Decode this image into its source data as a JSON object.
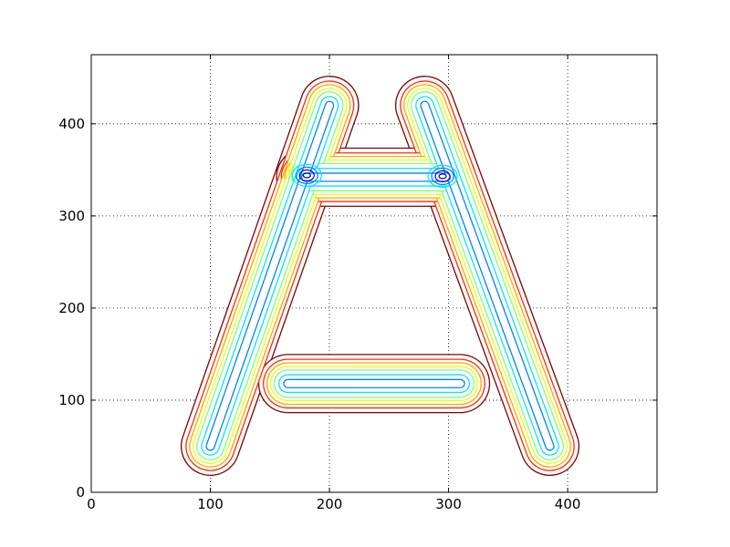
{
  "chart_data": {
    "type": "contour",
    "title": "",
    "xlabel": "",
    "ylabel": "",
    "xlim": [
      0,
      475
    ],
    "ylim": [
      0,
      475
    ],
    "x_ticks": [
      0,
      100,
      200,
      300,
      400
    ],
    "y_ticks": [
      0,
      100,
      200,
      300,
      400
    ],
    "x_tick_labels": [
      "0",
      "100",
      "200",
      "300",
      "400"
    ],
    "y_tick_labels": [
      "0",
      "100",
      "200",
      "300",
      "400"
    ],
    "grid": "dotted",
    "colormap": "jet",
    "level_colors": [
      "#00007f",
      "#0000ff",
      "#0080ff",
      "#00e5ff",
      "#7dff7a",
      "#e5ff12",
      "#ffa500",
      "#ff2a00",
      "#7f0000"
    ],
    "strokes": [
      {
        "name": "left-leg",
        "points": [
          [
            100,
            50
          ],
          [
            200,
            420
          ]
        ]
      },
      {
        "name": "right-leg",
        "points": [
          [
            280,
            420
          ],
          [
            385,
            50
          ]
        ]
      },
      {
        "name": "crossbar",
        "points": [
          [
            180,
            342
          ],
          [
            298,
            342
          ]
        ]
      },
      {
        "name": "bottom-bar",
        "points": [
          [
            165,
            118
          ],
          [
            310,
            118
          ]
        ]
      }
    ],
    "local_minima": [
      [
        181,
        344
      ],
      [
        295,
        343
      ]
    ],
    "band_half_widths": [
      3,
      7,
      11,
      14,
      17,
      20,
      24
    ]
  }
}
